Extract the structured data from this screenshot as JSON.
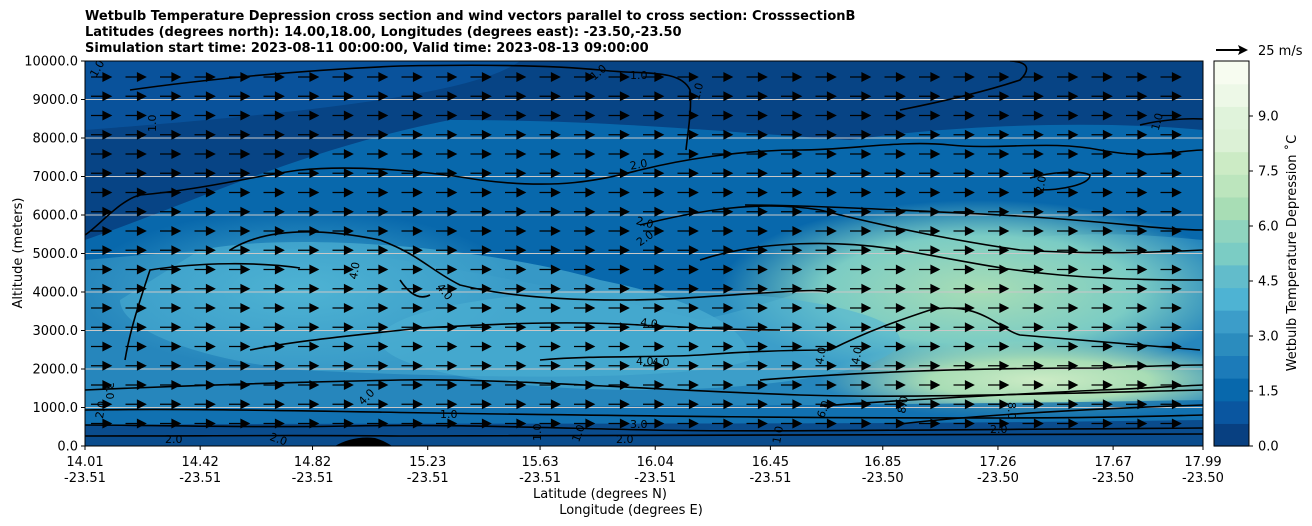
{
  "chart_data": {
    "type": "contour",
    "title": "Wetbulb Temperature Depression cross section and wind vectors parallel to cross section: CrosssectionB",
    "subtitle_latlon": "Latitudes (degrees north): 14.00,18.00, Longitudes (degrees east): -23.50,-23.50",
    "subtitle_time": "Simulation start time: 2023-08-11 00:00:00, Valid time: 2023-08-13 09:00:00",
    "ylabel": "Altitude (meters)",
    "xlabel_lat": "Latitude (degrees N)",
    "xlabel_lon": "Longitude (degrees E)",
    "ylim": [
      0,
      10000
    ],
    "xlim": [
      14.01,
      17.99
    ],
    "y_ticks": [
      "0.0",
      "1000.0",
      "2000.0",
      "3000.0",
      "4000.0",
      "5000.0",
      "6000.0",
      "7000.0",
      "8000.0",
      "9000.0",
      "10000.0"
    ],
    "y_tick_values": [
      0,
      1000,
      2000,
      3000,
      4000,
      5000,
      6000,
      7000,
      8000,
      9000,
      10000
    ],
    "x_ticks": [
      {
        "lat": "14.01",
        "lon": "-23.51",
        "value": 14.01
      },
      {
        "lat": "14.42",
        "lon": "-23.51",
        "value": 14.42
      },
      {
        "lat": "14.82",
        "lon": "-23.51",
        "value": 14.82
      },
      {
        "lat": "15.23",
        "lon": "-23.51",
        "value": 15.23
      },
      {
        "lat": "15.63",
        "lon": "-23.51",
        "value": 15.63
      },
      {
        "lat": "16.04",
        "lon": "-23.51",
        "value": 16.04
      },
      {
        "lat": "16.45",
        "lon": "-23.51",
        "value": 16.45
      },
      {
        "lat": "16.85",
        "lon": "-23.50",
        "value": 16.85
      },
      {
        "lat": "17.26",
        "lon": "-23.50",
        "value": 17.26
      },
      {
        "lat": "17.67",
        "lon": "-23.50",
        "value": 17.67
      },
      {
        "lat": "17.99",
        "lon": "-23.50",
        "value": 17.99
      }
    ],
    "colorbar": {
      "label": "Wetbulb Temperature Depression ˚C",
      "range": [
        0,
        10.5
      ],
      "tick_labels": [
        "0.0",
        "1.5",
        "3.0",
        "4.5",
        "6.0",
        "7.5",
        "9.0"
      ],
      "tick_values": [
        0,
        1.5,
        3.0,
        4.5,
        6.0,
        7.5,
        9.0
      ],
      "colors": [
        "#084081",
        "#0a56a0",
        "#0868ac",
        "#1c7bb9",
        "#2b8cbe",
        "#3c9dc9",
        "#4eb3d3",
        "#62bccb",
        "#7bccc4",
        "#8fd4bf",
        "#a8ddb5",
        "#bce5bd",
        "#ccebc5",
        "#dcf1d6",
        "#e0f3db",
        "#edf8e7",
        "#f7fcf0"
      ]
    },
    "quiver_key": {
      "label": "25 m/s",
      "speed": 25
    },
    "contour_labels": [
      "1.0",
      "1.0",
      "1.0",
      "1.0",
      "1.0",
      "1.0",
      "2.0",
      "2.0",
      "2.0",
      "2.0",
      "4.0",
      "4.0",
      "4.0",
      "4.0",
      "4.0",
      "4.0",
      "4.0",
      "4.0",
      "3.0",
      "3.0",
      "2.0",
      "6.0",
      "8.0",
      "8.0",
      "2.0",
      "1.0",
      "1.0",
      "1.0",
      "1.0",
      "2.0",
      "2.0",
      "2.0"
    ]
  }
}
